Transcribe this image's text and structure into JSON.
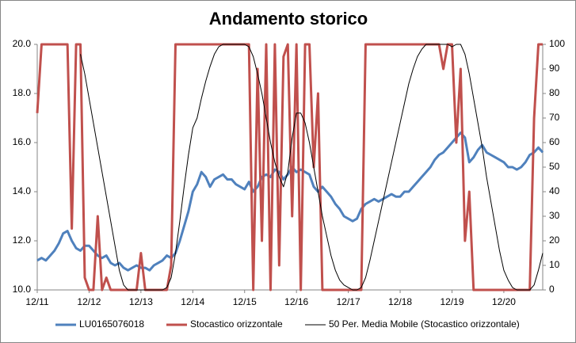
{
  "chart_data": {
    "type": "line",
    "title": "Andamento storico",
    "categories": [
      "12/11",
      null,
      null,
      null,
      null,
      null,
      null,
      null,
      null,
      null,
      null,
      null,
      "12/12",
      null,
      null,
      null,
      null,
      null,
      null,
      null,
      null,
      null,
      null,
      null,
      "12/13",
      null,
      null,
      null,
      null,
      null,
      null,
      null,
      null,
      null,
      null,
      null,
      "12/14",
      null,
      null,
      null,
      null,
      null,
      null,
      null,
      null,
      null,
      null,
      null,
      "12/15",
      null,
      null,
      null,
      null,
      null,
      null,
      null,
      null,
      null,
      null,
      null,
      "12/16",
      null,
      null,
      null,
      null,
      null,
      null,
      null,
      null,
      null,
      null,
      null,
      "12/17",
      null,
      null,
      null,
      null,
      null,
      null,
      null,
      null,
      null,
      null,
      null,
      "12/18",
      null,
      null,
      null,
      null,
      null,
      null,
      null,
      null,
      null,
      null,
      null,
      "12/19",
      null,
      null,
      null,
      null,
      null,
      null,
      null,
      null,
      null,
      null,
      null,
      "12/20",
      null,
      null,
      null,
      null,
      null,
      null,
      null,
      null,
      null
    ],
    "series": [
      {
        "name": "LU0165076018",
        "color": "#4f81bd",
        "line_width": 3,
        "values": [
          11.2,
          11.3,
          11.2,
          11.4,
          11.6,
          11.9,
          12.3,
          12.4,
          12.0,
          11.7,
          11.6,
          11.8,
          11.8,
          11.6,
          11.4,
          11.3,
          11.4,
          11.1,
          11.0,
          11.1,
          10.9,
          10.8,
          10.9,
          11.0,
          10.9,
          10.9,
          10.8,
          11.0,
          11.1,
          11.2,
          11.4,
          11.3,
          11.5,
          12.0,
          12.6,
          13.2,
          14.0,
          14.3,
          14.8,
          14.6,
          14.2,
          14.5,
          14.6,
          14.7,
          14.5,
          14.5,
          14.3,
          14.2,
          14.1,
          14.4,
          14.0,
          14.2,
          14.6,
          14.7,
          14.6,
          14.9,
          14.8,
          14.5,
          14.7,
          15.0,
          14.8,
          14.9,
          14.8,
          14.7,
          14.2,
          14.0,
          14.2,
          14.0,
          13.8,
          13.5,
          13.3,
          13.0,
          12.9,
          12.8,
          12.9,
          13.3,
          13.5,
          13.6,
          13.7,
          13.6,
          13.7,
          13.8,
          13.9,
          13.8,
          13.8,
          14.0,
          14.0,
          14.2,
          14.4,
          14.6,
          14.8,
          15.0,
          15.3,
          15.5,
          15.6,
          15.8,
          16.0,
          16.2,
          16.4,
          16.2,
          15.2,
          15.4,
          15.7,
          15.9,
          15.6,
          15.5,
          15.4,
          15.3,
          15.2,
          15.0,
          15.0,
          14.9,
          15.0,
          15.2,
          15.5,
          15.6,
          15.8,
          15.6
        ]
      },
      {
        "name": "Stocastico orizzontale",
        "color": "#c0504d",
        "line_width": 3,
        "axis": "y2",
        "values": [
          72,
          100,
          100,
          100,
          100,
          100,
          100,
          100,
          25,
          100,
          100,
          5,
          0,
          0,
          30,
          0,
          5,
          0,
          0,
          0,
          0,
          0,
          0,
          0,
          15,
          0,
          0,
          0,
          0,
          0,
          0,
          10,
          100,
          100,
          100,
          100,
          100,
          100,
          100,
          100,
          100,
          100,
          100,
          100,
          100,
          100,
          100,
          100,
          100,
          100,
          0,
          90,
          20,
          100,
          0,
          100,
          10,
          95,
          100,
          30,
          100,
          0,
          100,
          100,
          50,
          80,
          0,
          0,
          0,
          0,
          0,
          0,
          0,
          0,
          0,
          0,
          100,
          100,
          100,
          100,
          100,
          100,
          100,
          100,
          100,
          100,
          100,
          100,
          100,
          100,
          100,
          100,
          100,
          100,
          90,
          100,
          100,
          60,
          90,
          20,
          40,
          0,
          0,
          0,
          0,
          0,
          0,
          0,
          0,
          0,
          0,
          0,
          0,
          0,
          0,
          70,
          100,
          100
        ]
      },
      {
        "name": "50 Per. Media Mobile (Stocastico orizzontale)",
        "color": "#000000",
        "line_width": 1,
        "axis": "y2",
        "values": [
          null,
          null,
          null,
          null,
          null,
          null,
          null,
          null,
          null,
          null,
          96,
          88,
          78,
          68,
          58,
          48,
          38,
          28,
          18,
          8,
          2,
          0,
          0,
          0,
          0,
          0,
          0,
          0,
          0,
          0,
          1,
          5,
          15,
          28,
          42,
          55,
          66,
          70,
          78,
          85,
          91,
          96,
          99,
          100,
          100,
          100,
          100,
          100,
          100,
          99,
          95,
          88,
          80,
          70,
          60,
          52,
          46,
          42,
          48,
          62,
          72,
          72,
          68,
          60,
          50,
          40,
          30,
          22,
          14,
          8,
          4,
          2,
          1,
          0,
          0,
          1,
          5,
          12,
          20,
          28,
          36,
          44,
          52,
          60,
          68,
          76,
          84,
          90,
          95,
          98,
          100,
          100,
          100,
          100,
          100,
          100,
          99,
          100,
          100,
          96,
          88,
          78,
          68,
          58,
          46,
          36,
          26,
          16,
          8,
          4,
          1,
          0,
          0,
          0,
          0,
          2,
          8,
          15
        ]
      }
    ],
    "ylim": [
      10,
      20
    ],
    "yticks": [
      {
        "value": 10,
        "label": "10.0"
      },
      {
        "value": 12,
        "label": "12.0"
      },
      {
        "value": 14,
        "label": "14.0"
      },
      {
        "value": 16,
        "label": "16.0"
      },
      {
        "value": 18,
        "label": "18.0"
      },
      {
        "value": 20,
        "label": "20.0"
      }
    ],
    "y2lim": [
      0,
      100
    ],
    "y2ticks": [
      0,
      10,
      20,
      30,
      40,
      50,
      60,
      70,
      80,
      90,
      100
    ],
    "grid": false,
    "legend": "bottom"
  }
}
